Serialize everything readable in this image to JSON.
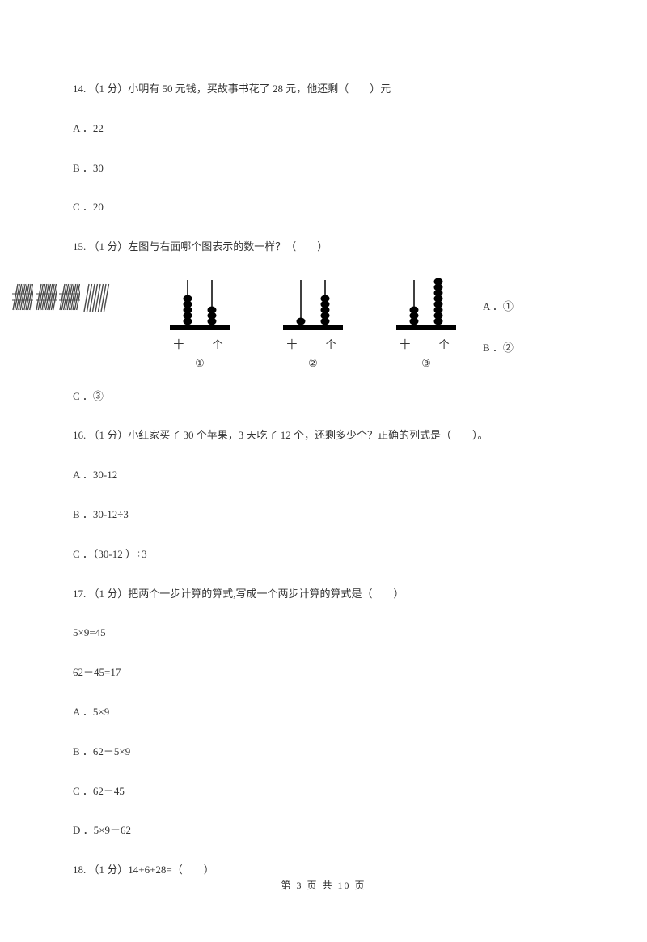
{
  "q14": {
    "text": "14.  （1 分）小明有 50 元钱，买故事书花了 28 元，他还剩（　　）元",
    "options": {
      "A": "A ．22",
      "B": "B ．30",
      "C": "C ．20"
    }
  },
  "q15": {
    "text": "15.  （1 分）左图与右面哪个图表示的数一样？（　　）",
    "sticks": {
      "bundles": 3,
      "loose": 8,
      "bundle_color": "#4a4a4a",
      "loose_color": "#4a4a4a"
    },
    "abacus": [
      {
        "tens": 5,
        "ones": 3,
        "num": "①"
      },
      {
        "tens": 1,
        "ones": 5,
        "num": "②"
      },
      {
        "tens": 3,
        "ones": 8,
        "num": "③"
      }
    ],
    "abacus_label": "十 个",
    "bead_color": "#000000",
    "rod_color": "#000000",
    "base_color": "#000000",
    "options": {
      "A": "A ．①",
      "B": "B ．②",
      "C": "C ．③"
    }
  },
  "q16": {
    "text": "16.  （1 分）小红家买了 30 个苹果，3 天吃了 12 个，还剩多少个？正确的列式是（　　）。",
    "options": {
      "A": "A ．30-12",
      "B": "B ．30-12÷3",
      "C": "C ．（30-12 ）÷3"
    }
  },
  "q17": {
    "text": "17.  （1 分）把两个一步计算的算式,写成一个两步计算的算式是（　　）",
    "eq1": "5×9=45",
    "eq2": "62－45=17",
    "options": {
      "A": "A ．5×9",
      "B": "B ．62－5×9",
      "C": "C ．62－45",
      "D": "D ．5×9－62"
    }
  },
  "q18": {
    "text": "18.  （1 分）14+6+28=（　　）"
  },
  "footer": "第 3 页 共 10 页"
}
